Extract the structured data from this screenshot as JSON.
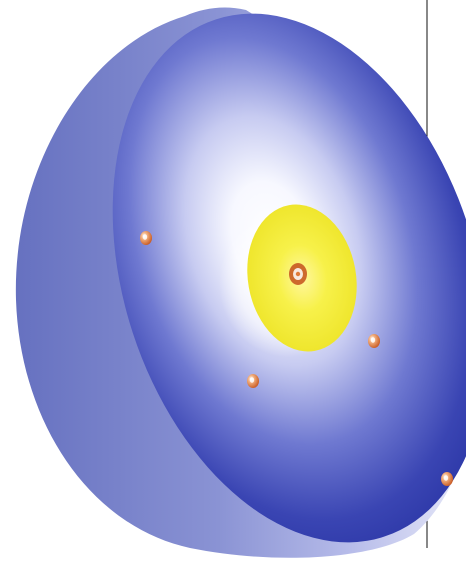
{
  "diagram": {
    "description_text": "",
    "colors": {
      "background": "#ffffff",
      "outer_shell_dark": "#2b36a6",
      "outer_shell_light": "#e7e9f7",
      "inner_glow": "#ffffff",
      "core_yellow": "#f5f03a",
      "particle_orange": "#e07a3a",
      "guide_line": "#111111"
    },
    "icons": {
      "sphere": "hemisphere-cutaway-icon",
      "core": "glowing-core-icon",
      "particle": "particle-dot-icon"
    },
    "particles_count": 5
  }
}
